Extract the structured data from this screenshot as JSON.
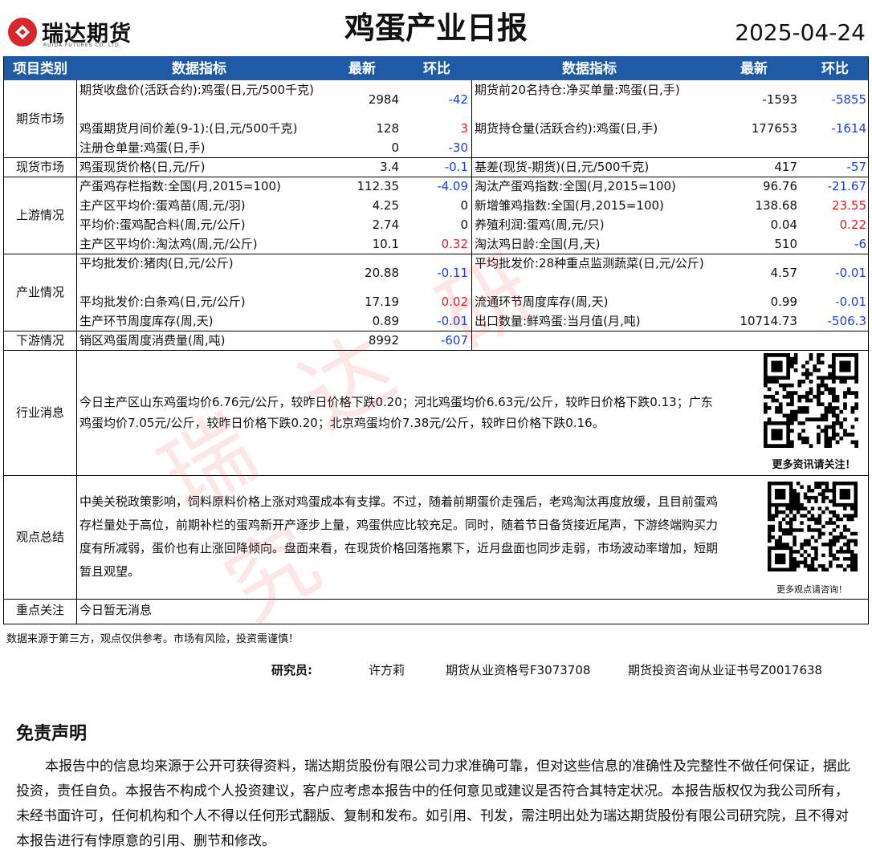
{
  "header": {
    "company": "瑞达期货",
    "company_en": "RUIDA FUTURES CO.,LTD.",
    "title": "鸡蛋产业日报",
    "date": "2025-04-24"
  },
  "table": {
    "columns": [
      "项目类别",
      "数据指标",
      "最新",
      "环比",
      "数据指标",
      "最新",
      "环比"
    ],
    "sections": [
      {
        "category": "期货市场",
        "rows": [
          [
            {
              "name": "期货收盘价(活跃合约):鸡蛋(日,元/500千克)",
              "latest": 2984,
              "change": -42
            },
            {
              "name": "期货前20名持仓:净买单量:鸡蛋(日,手)",
              "latest": -1593,
              "change": -5855
            }
          ],
          [
            {
              "name": "鸡蛋期货月间价差(9-1):(日,元/500千克)",
              "latest": 128,
              "change": 3
            },
            {
              "name": "期货持仓量(活跃合约):鸡蛋(日,手)",
              "latest": 177653,
              "change": -1614
            }
          ],
          [
            {
              "name": "注册仓单量:鸡蛋(日,手)",
              "latest": 0,
              "change": -30
            },
            null
          ]
        ]
      },
      {
        "category": "现货市场",
        "rows": [
          [
            {
              "name": "鸡蛋现货价格(日,元/斤)",
              "latest": 3.4,
              "change": -0.1
            },
            {
              "name": "基差(现货-期货)(日,元/500千克)",
              "latest": 417,
              "change": -57
            }
          ]
        ]
      },
      {
        "category": "上游情况",
        "rows": [
          [
            {
              "name": "产蛋鸡存栏指数:全国(月,2015=100)",
              "latest": 112.35,
              "change": -4.09
            },
            {
              "name": "淘汰产蛋鸡指数:全国(月,2015=100)",
              "latest": 96.76,
              "change": -21.67
            }
          ],
          [
            {
              "name": "主产区平均价:蛋鸡苗(周,元/羽)",
              "latest": 4.25,
              "change": 0
            },
            {
              "name": "新增雏鸡指数:全国(月,2015=100)",
              "latest": 138.68,
              "change": 23.55
            }
          ],
          [
            {
              "name": "平均价:蛋鸡配合料(周,元/公斤)",
              "latest": 2.74,
              "change": 0
            },
            {
              "name": "养殖利润:蛋鸡(周,元/只)",
              "latest": 0.04,
              "change": 0.22
            }
          ],
          [
            {
              "name": "主产区平均价:淘汰鸡(周,元/公斤)",
              "latest": 10.1,
              "change": 0.32
            },
            {
              "name": "淘汰鸡日龄:全国(月,天)",
              "latest": 510,
              "change": -6
            }
          ]
        ]
      },
      {
        "category": "产业情况",
        "rows": [
          [
            {
              "name": "平均批发价:猪肉(日,元/公斤)",
              "latest": 20.88,
              "change": -0.11
            },
            {
              "name": "平均批发价:28种重点监测蔬菜(日,元/公斤)",
              "latest": 4.57,
              "change": -0.01
            }
          ],
          [
            {
              "name": "平均批发价:白条鸡(日,元/公斤)",
              "latest": 17.19,
              "change": 0.02
            },
            {
              "name": "流通环节周度库存(周,天)",
              "latest": 0.99,
              "change": -0.01
            }
          ],
          [
            {
              "name": "生产环节周度库存(周,天)",
              "latest": 0.89,
              "change": -0.01
            },
            {
              "name": "出口数量:鲜鸡蛋:当月值(月,吨)",
              "latest": 10714.73,
              "change": -506.3
            }
          ]
        ]
      },
      {
        "category": "下游情况",
        "rows": [
          [
            {
              "name": "销区鸡蛋周度消费量(周,吨)",
              "latest": 8992,
              "change": -607
            },
            null
          ]
        ]
      }
    ],
    "news": {
      "category": "行业消息",
      "text": "今日主产区山东鸡蛋均价6.76元/公斤，较昨日价格下跌0.20；河北鸡蛋均价6.63元/公斤，较昨日价格下跌0.13；广东鸡蛋均价7.05元/公斤，较昨日价格下跌0.20；北京鸡蛋均价7.38元/公斤，较昨日价格下跌0.16。",
      "qr_caption": "更多资讯请关注！"
    },
    "view": {
      "category": "观点总结",
      "text": "中美关税政策影响，饲料原料价格上涨对鸡蛋成本有支撑。不过，随着前期蛋价走强后，老鸡淘汰再度放缓，且目前蛋鸡存栏量处于高位，前期补栏的蛋鸡新开产逐步上量，鸡蛋供应比较充足。同时，随着节日备货接近尾声，下游终端购买力度有所减弱，蛋价也有止涨回降倾向。盘面来看，在现货价格回落拖累下，近月盘面也同步走弱，市场波动率增加，短期暂且观望。",
      "qr_caption": "更多观点请咨询！"
    },
    "focus": {
      "category": "重点关注",
      "text": "今日暂无消息"
    }
  },
  "watermark": "瑞达研究",
  "footer": {
    "note": "数据来源于第三方，观点仅供参考。市场有风险，投资需谨慎！",
    "researcher_label": "研究员:",
    "researcher": "许方莉",
    "license1": "期货从业资格号F3073708",
    "license2": "期货投资咨询从业证书号Z0017638"
  },
  "disclaimer": {
    "title": "免责声明",
    "text": "本报告中的信息均来源于公开可获得资料，瑞达期货股份有限公司力求准确可靠，但对这些信息的准确性及完整性不做任何保证，据此投资，责任自负。本报告不构成个人投资建议，客户应考虑本报告中的任何意见或建议是否符合其特定状况。本报告版权仅为我公司所有，未经书面许可，任何机构和个人不得以任何形式翻版、复制和发布。如引用、刊发，需注明出处为瑞达期货股份有限公司研究院，且不得对本报告进行有悖原意的引用、删节和修改。"
  }
}
